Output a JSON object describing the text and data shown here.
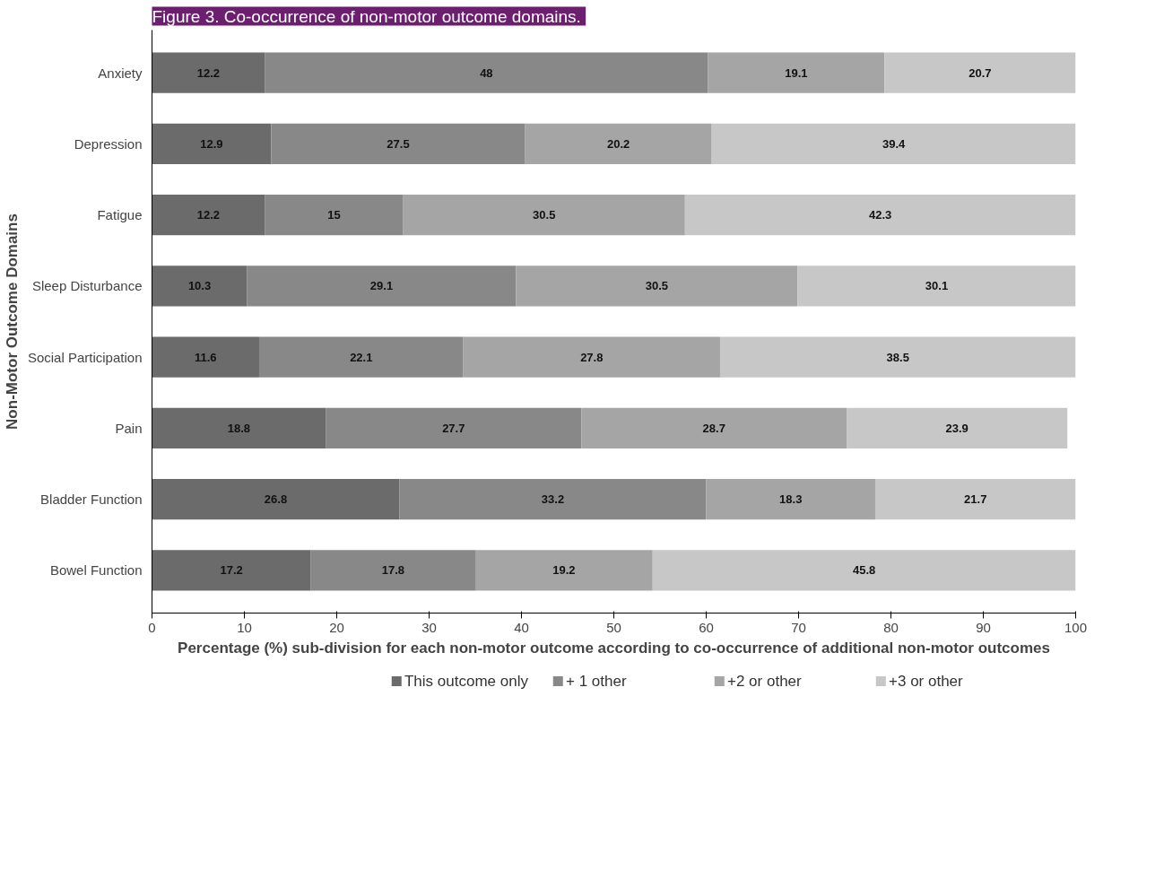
{
  "chart_data": {
    "type": "bar",
    "title": "Figure 3.  Co-occurrence of non-motor outcome domains.",
    "orientation": "horizontal",
    "stacked": true,
    "data_labels": true,
    "grid": false,
    "legend": "bottom",
    "xlabel": "Percentage (%) sub-division for each non-motor outcome according to co-occurrence of additional non-motor outcomes",
    "ylabel": "Non-Motor Outcome Domains",
    "categories": [
      "Anxiety",
      "Depression",
      "Fatigue",
      "Sleep Disturbance",
      "Social Participation",
      "Pain",
      "Bladder Function",
      "Bowel Function"
    ],
    "xlim": [
      0,
      100
    ],
    "xticks": [
      0,
      10,
      20,
      30,
      40,
      50,
      60,
      70,
      80,
      90,
      100
    ],
    "series": [
      {
        "name": "This outcome only",
        "color": "#6b6b6b",
        "values": [
          12.2,
          12.9,
          12.2,
          10.3,
          11.6,
          18.8,
          26.8,
          17.2
        ]
      },
      {
        "name": "+ 1 other",
        "color": "#888888",
        "values": [
          48,
          27.5,
          15,
          29.1,
          22.1,
          27.7,
          33.2,
          17.8
        ]
      },
      {
        "name": "+2 or other",
        "color": "#a5a5a5",
        "values": [
          19.1,
          20.2,
          30.5,
          30.5,
          27.8,
          28.7,
          18.3,
          19.2
        ]
      },
      {
        "name": "+3 or other",
        "color": "#c7c7c7",
        "values": [
          20.7,
          39.4,
          42.3,
          30.1,
          38.5,
          23.9,
          21.7,
          45.8
        ]
      }
    ]
  }
}
